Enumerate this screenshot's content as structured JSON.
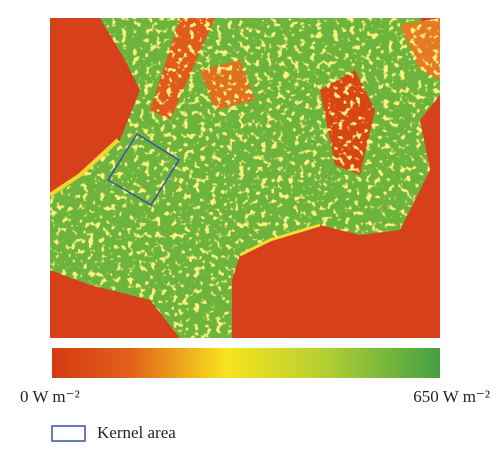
{
  "colorbar": {
    "min_label": "0 W m⁻²",
    "max_label": "650 W m⁻²"
  },
  "legend": {
    "label": "Kernel area"
  }
}
